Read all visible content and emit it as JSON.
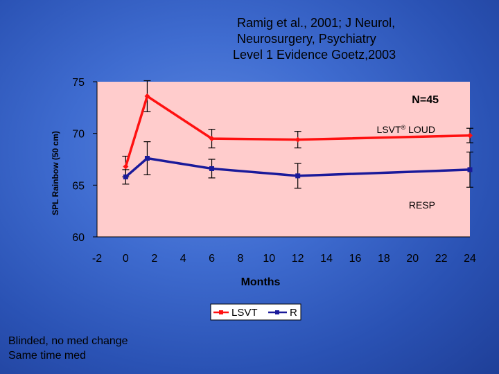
{
  "citation": {
    "line1": "Ramig et al., 2001; J Neurol,",
    "line2": "Neurosurgery, Psychiatry",
    "line3": "Level 1 Evidence Goetz,2003"
  },
  "footnote": {
    "line1": "Blinded, no med change",
    "line2": "Same time med"
  },
  "colors": {
    "plot_background": "#ffcccc",
    "lsvt": "#ff1010",
    "resp": "#1a1a9a"
  },
  "chart_data": {
    "type": "line",
    "title": "",
    "xlabel": "Months",
    "ylabel": "SPL Rainbow (50 cm)",
    "xlim": [
      -2,
      24
    ],
    "ylim": [
      60,
      75
    ],
    "x_ticks": [
      -2,
      0,
      2,
      4,
      6,
      8,
      10,
      12,
      14,
      16,
      18,
      20,
      22,
      24
    ],
    "y_ticks": [
      60,
      65,
      70,
      75
    ],
    "grid": false,
    "legend_position": "bottom-center",
    "annotations": {
      "n": "N=45",
      "lsvt_label": "LSVT",
      "lsvt_label_sup": "®",
      "lsvt_label_suffix": " LOUD",
      "resp_label": "RESP"
    },
    "legend": [
      "LSVT",
      "R"
    ],
    "series": [
      {
        "name": "LSVT",
        "x": [
          0,
          1.5,
          6,
          12,
          24
        ],
        "y": [
          66.8,
          73.6,
          69.5,
          69.4,
          69.8
        ],
        "err": [
          1.0,
          1.5,
          0.9,
          0.8,
          0.7
        ]
      },
      {
        "name": "R",
        "x": [
          0,
          1.5,
          6,
          12,
          24
        ],
        "y": [
          65.8,
          67.6,
          66.6,
          65.9,
          66.5
        ],
        "err": [
          0.7,
          1.6,
          0.9,
          1.2,
          1.7
        ]
      }
    ]
  }
}
